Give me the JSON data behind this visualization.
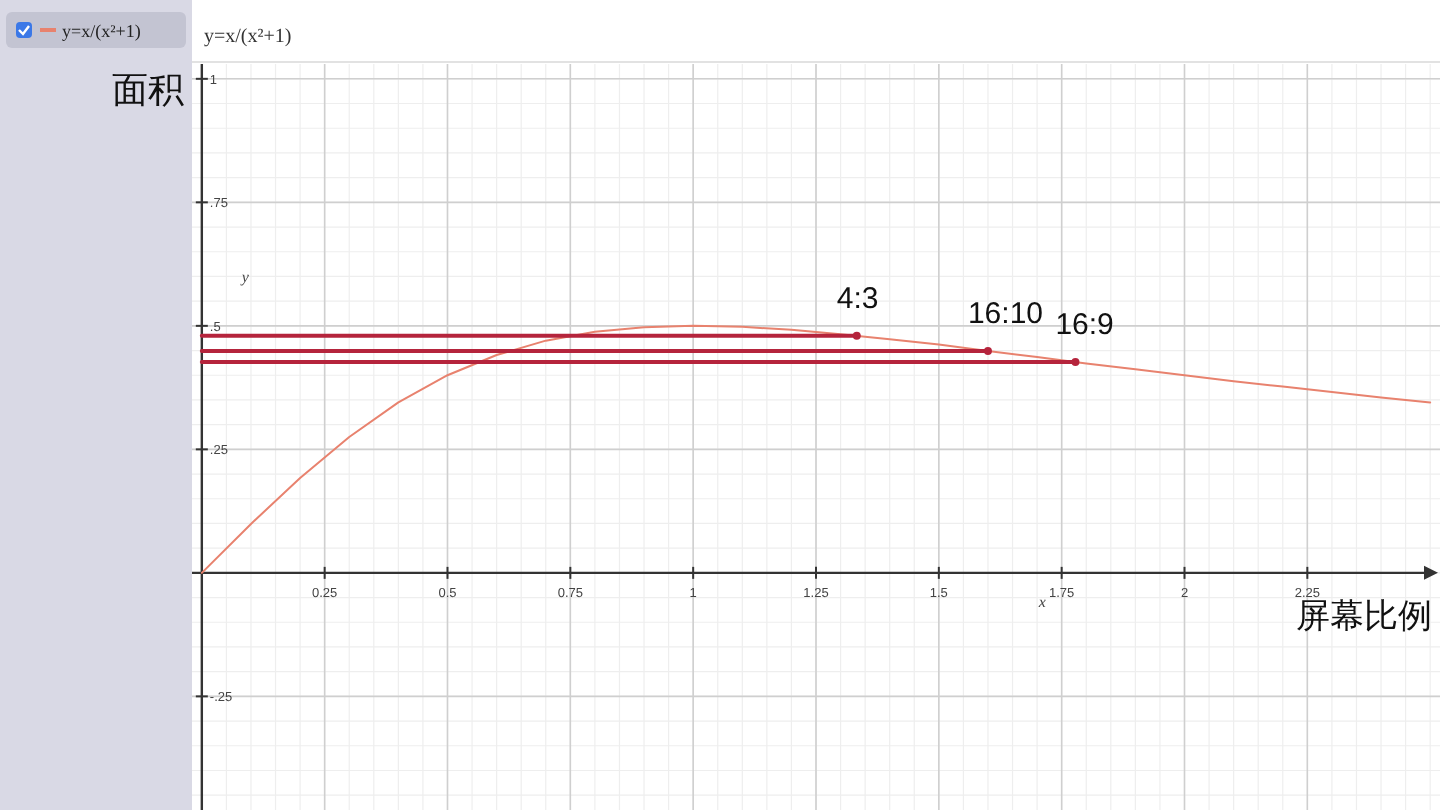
{
  "chart_data": {
    "type": "line",
    "title": "y=x/(x²+1)",
    "xlabel": "屏幕比例",
    "ylabel": "面积",
    "annotations": [
      "x",
      "y"
    ],
    "xlim": [
      -0.02,
      2.52
    ],
    "ylim": [
      -0.48,
      1.03
    ],
    "xticks": [
      0.25,
      0.5,
      0.75,
      1,
      1.25,
      1.5,
      1.75,
      2,
      2.25
    ],
    "yticks": [
      {
        "value": -0.25,
        "label": "-.25"
      },
      {
        "value": 0.25,
        "label": ".25"
      },
      {
        "value": 0.5,
        "label": ".5"
      },
      {
        "value": 0.75,
        "label": ".75"
      },
      1
    ],
    "grid": true,
    "legend": "top left",
    "series": [
      {
        "name": "y=x/(x²+1)",
        "color": "#e8826e",
        "x": [
          0,
          0.1,
          0.2,
          0.3,
          0.4,
          0.5,
          0.6,
          0.7,
          0.8,
          0.9,
          1.0,
          1.1,
          1.2,
          1.3,
          1.4,
          1.5,
          1.6,
          1.7,
          1.8,
          1.9,
          2.0,
          2.1,
          2.2,
          2.3,
          2.4,
          2.5
        ],
        "values": [
          0,
          0.099,
          0.192,
          0.275,
          0.345,
          0.4,
          0.441,
          0.47,
          0.488,
          0.497,
          0.5,
          0.498,
          0.492,
          0.483,
          0.473,
          0.462,
          0.449,
          0.437,
          0.424,
          0.412,
          0.4,
          0.388,
          0.377,
          0.366,
          0.355,
          0.345
        ]
      },
      {
        "name": "4:3",
        "color": "#b5243c",
        "marker": "circle",
        "x": [
          0,
          1.333
        ],
        "values": [
          0.48,
          0.48
        ]
      },
      {
        "name": "16:10",
        "color": "#b5243c",
        "marker": "circle",
        "x": [
          0,
          1.6
        ],
        "values": [
          0.449,
          0.449
        ]
      },
      {
        "name": "16:9",
        "color": "#b5243c",
        "marker": "circle",
        "x": [
          0,
          1.778
        ],
        "values": [
          0.427,
          0.427
        ]
      }
    ]
  }
}
